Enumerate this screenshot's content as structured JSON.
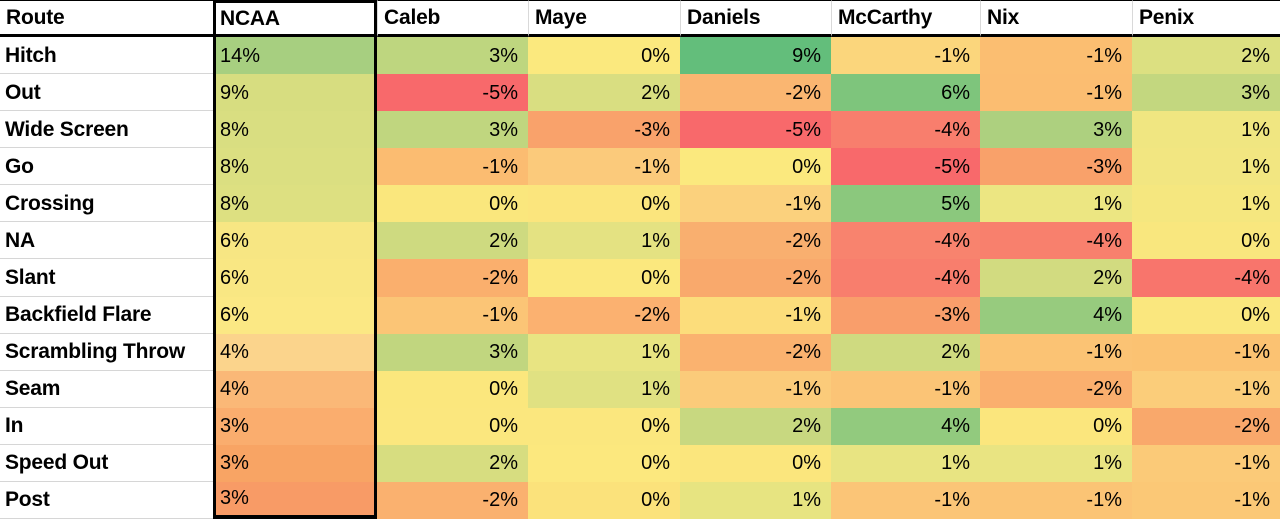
{
  "chart_data": {
    "type": "heatmap",
    "columns": [
      "Route",
      "NCAA",
      "Caleb",
      "Maye",
      "Daniels",
      "McCarthy",
      "Nix",
      "Penix"
    ],
    "rows": [
      "Hitch",
      "Out",
      "Wide Screen",
      "Go",
      "Crossing",
      "NA",
      "Slant",
      "Backfield Flare",
      "Scrambling Throw",
      "Seam",
      "In",
      "Speed Out",
      "Post"
    ],
    "value_unit": "%",
    "values": [
      [
        14,
        3,
        0,
        9,
        -1,
        -1,
        2
      ],
      [
        9,
        -5,
        2,
        -2,
        6,
        -1,
        3
      ],
      [
        8,
        3,
        -3,
        -5,
        -4,
        3,
        1
      ],
      [
        8,
        -1,
        -1,
        0,
        -5,
        -3,
        1
      ],
      [
        8,
        0,
        0,
        -1,
        5,
        1,
        1
      ],
      [
        6,
        2,
        1,
        -2,
        -4,
        -4,
        0
      ],
      [
        6,
        -2,
        0,
        -2,
        -4,
        2,
        -4
      ],
      [
        6,
        -1,
        -2,
        -1,
        -3,
        4,
        0
      ],
      [
        4,
        3,
        1,
        -2,
        2,
        -1,
        -1
      ],
      [
        4,
        0,
        1,
        -1,
        -1,
        -2,
        -1
      ],
      [
        3,
        0,
        0,
        2,
        4,
        0,
        -2
      ],
      [
        3,
        2,
        0,
        0,
        1,
        1,
        -1
      ],
      [
        3,
        -2,
        0,
        1,
        -1,
        -1,
        -1
      ]
    ],
    "cell_colors": [
      [
        "#A7CF80",
        "#BED67F",
        "#FBE97E",
        "#63BE7B",
        "#FBD67C",
        "#FBBE71",
        "#DCE081"
      ],
      [
        "#D7DD80",
        "#F8696B",
        "#D9DE81",
        "#FAB671",
        "#7EC57C",
        "#FBBD71",
        "#C3D77F"
      ],
      [
        "#D9DE81",
        "#C0D67F",
        "#F9A26B",
        "#F8696B",
        "#F87E6D",
        "#ADD07F",
        "#F0E681"
      ],
      [
        "#DBDF81",
        "#FBBC71",
        "#FBCA7B",
        "#FBE97E",
        "#F8696B",
        "#F9A16A",
        "#F2E681"
      ],
      [
        "#DDE081",
        "#FAE77D",
        "#FBE57D",
        "#FBD17D",
        "#8BC87D",
        "#ECE682",
        "#F5E77F"
      ],
      [
        "#F7E683",
        "#CEDA80",
        "#E4E282",
        "#F9AF6F",
        "#F8836E",
        "#F8806D",
        "#F9E77E"
      ],
      [
        "#F9E783",
        "#FAAF6D",
        "#FBE87E",
        "#F9A96C",
        "#F87E6D",
        "#D2DB80",
        "#F8756C"
      ],
      [
        "#FBE884",
        "#FBC576",
        "#FBB170",
        "#FCDD7B",
        "#F99E6B",
        "#97CB7E",
        "#FAE77E"
      ],
      [
        "#FBD48C",
        "#C1D67F",
        "#E8E482",
        "#FAB26F",
        "#CFDA80",
        "#FBC374",
        "#FBC272"
      ],
      [
        "#FAB877",
        "#FBE77D",
        "#E0E182",
        "#FBCB7A",
        "#FBC476",
        "#FAAF6E",
        "#FBCD7A"
      ],
      [
        "#FAAD6E",
        "#FBE77E",
        "#FBE77E",
        "#C8D880",
        "#92CA7E",
        "#FBE67D",
        "#F9A86B"
      ],
      [
        "#F8A464",
        "#D7DD80",
        "#FCE87E",
        "#FBE67D",
        "#E8E482",
        "#E9E482",
        "#FBCA78"
      ],
      [
        "#F89B66",
        "#FAB16F",
        "#FBE27B",
        "#E7E481",
        "#FBC577",
        "#FBC475",
        "#FBC876"
      ]
    ],
    "layout_hints": {
      "header_bg": "#ffffff",
      "frame_color": "#000000",
      "row_divider_color": "#d6d6d6",
      "ncaa_column_heavy_framed": true,
      "ncaa_values_left_aligned": true,
      "qb_values_right_aligned": true,
      "color_scale_low": "#F8696B",
      "color_scale_mid": "#FFEB84",
      "color_scale_high": "#63BE7B"
    }
  }
}
